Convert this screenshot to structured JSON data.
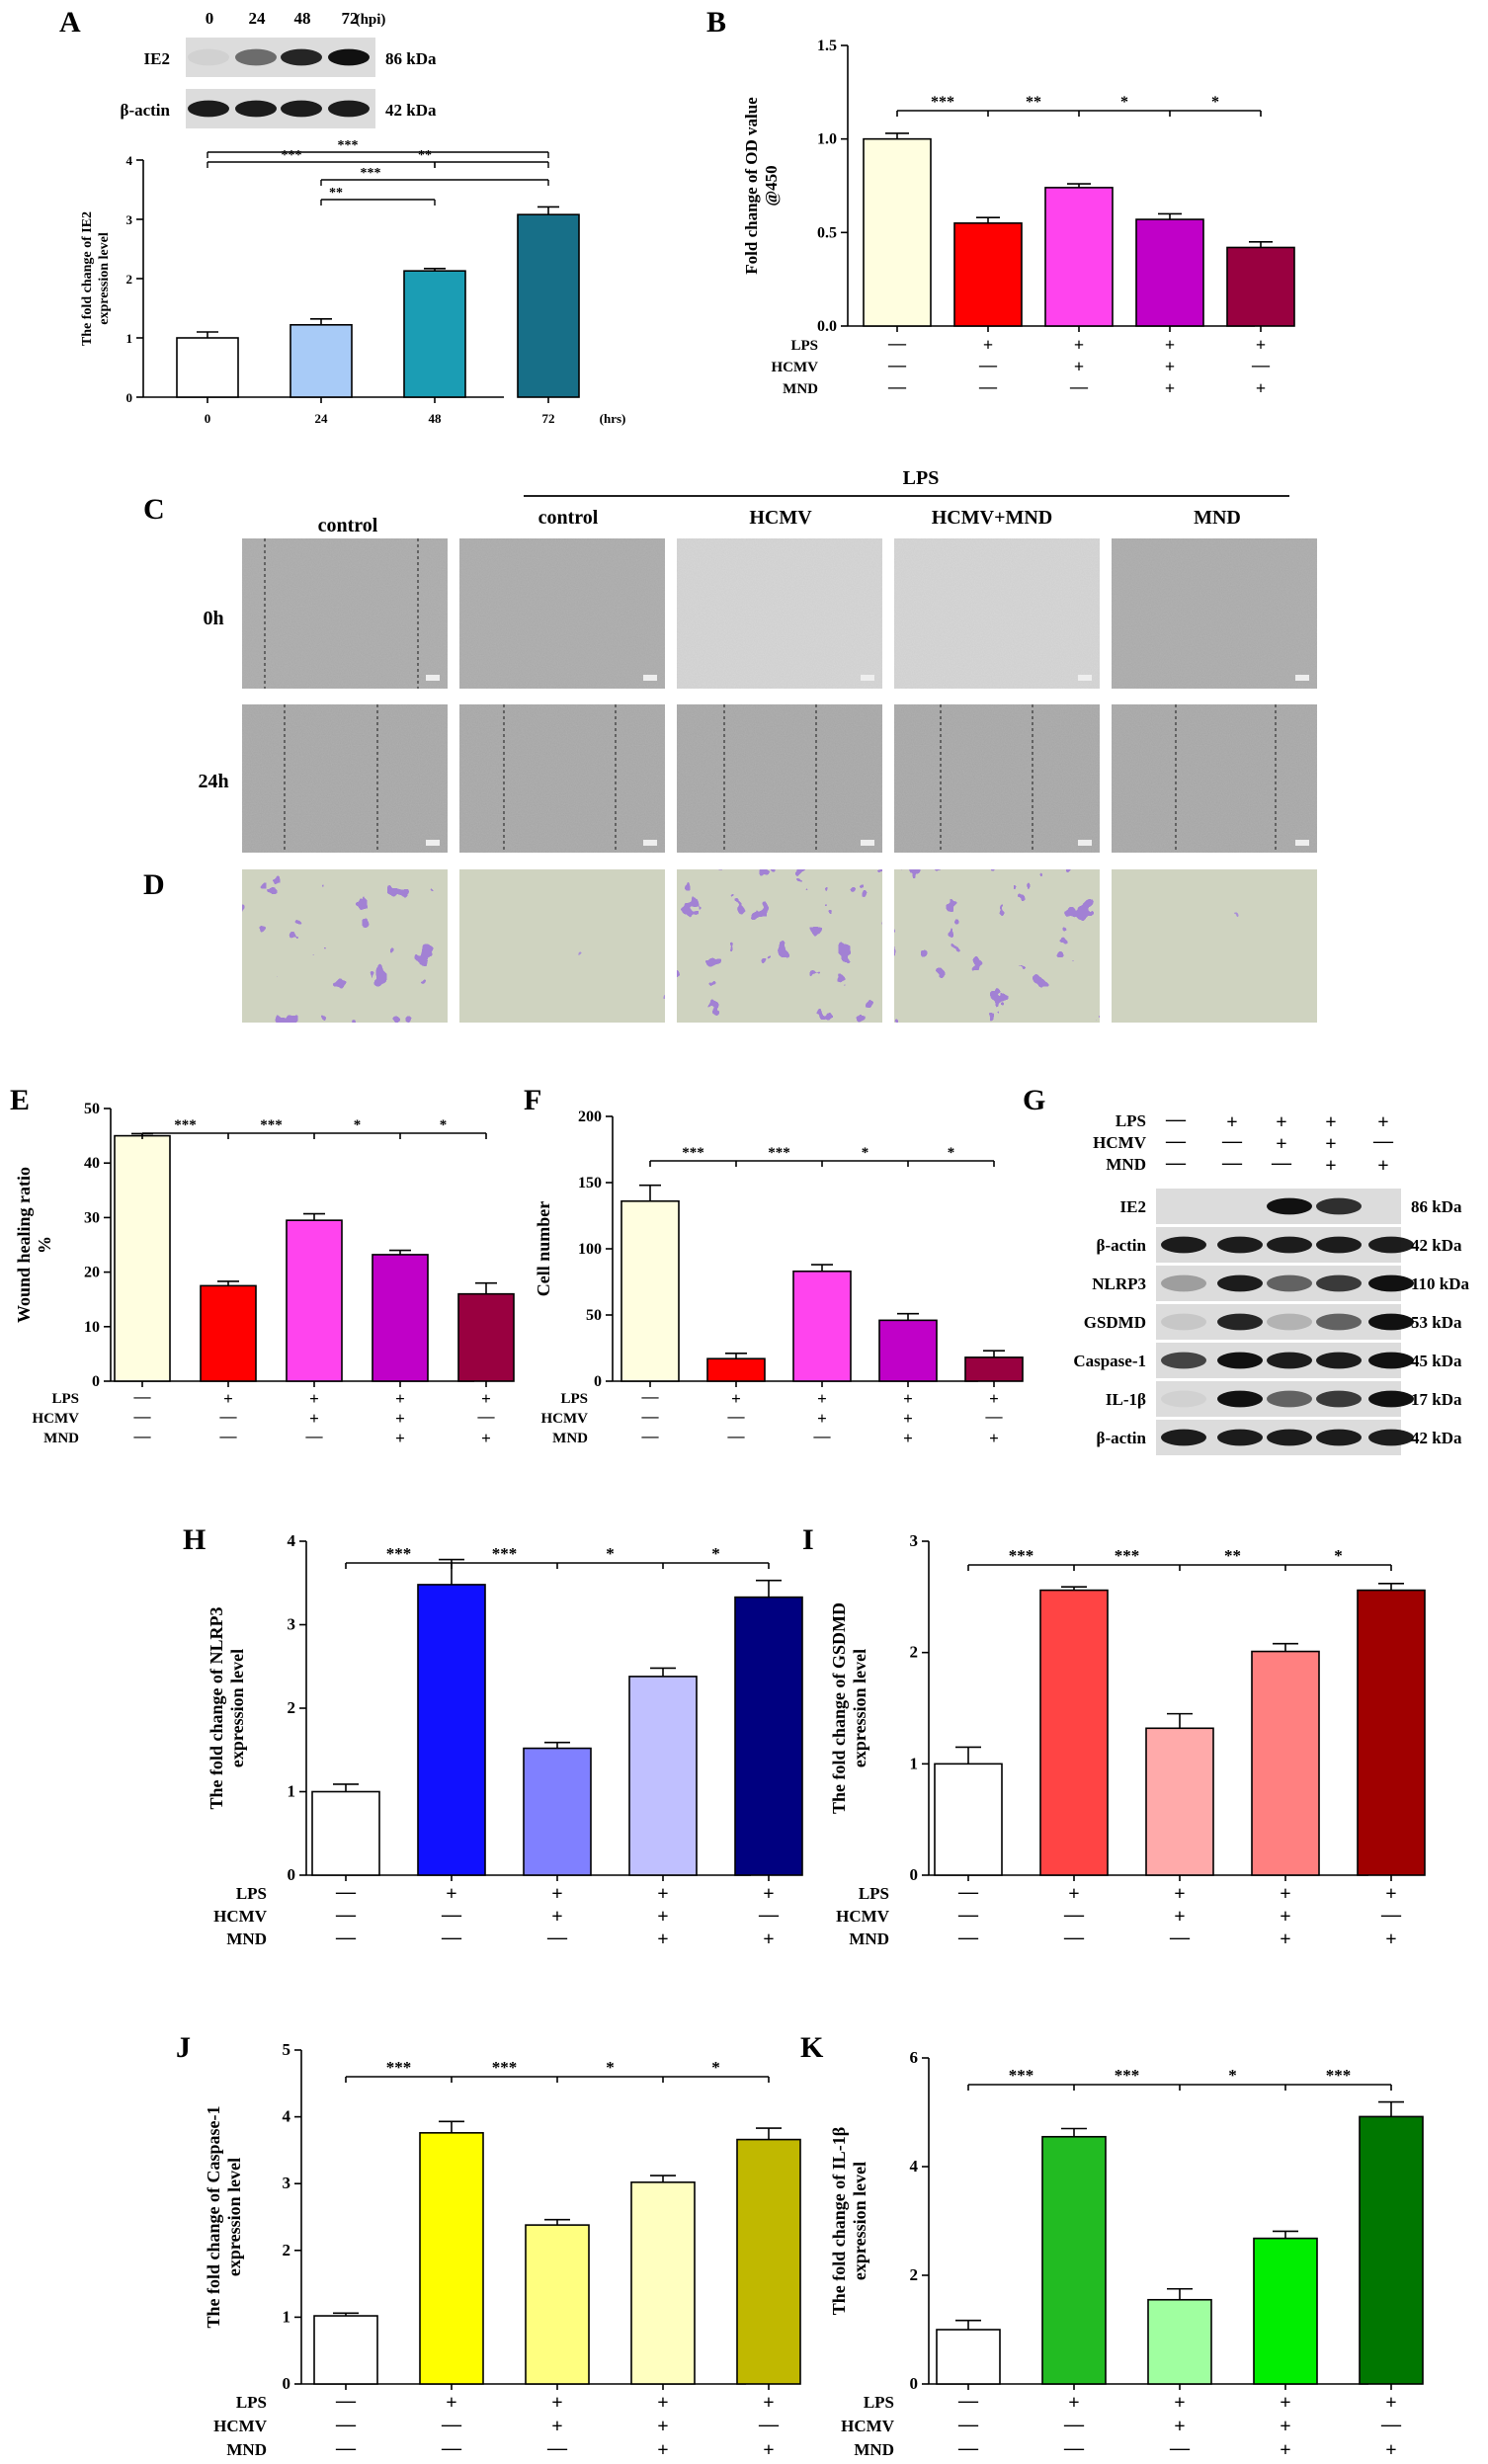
{
  "colors": {
    "A": [
      "#ffffff",
      "#a8cbf7",
      "#1b9db4",
      "#176f88"
    ],
    "B": [
      "#fffee0",
      "#ff0000",
      "#ff44ee",
      "#c000c8",
      "#990040"
    ],
    "E": [
      "#fffee0",
      "#ff0000",
      "#ff44ee",
      "#c000c8",
      "#990040"
    ],
    "F": [
      "#fffee0",
      "#ff0000",
      "#ff44ee",
      "#c000c8",
      "#990040"
    ],
    "H": [
      "#ffffff",
      "#1010ff",
      "#8080ff",
      "#c0c0ff",
      "#000080"
    ],
    "I": [
      "#ffffff",
      "#ff4444",
      "#ffaaaa",
      "#ff8080",
      "#a00000"
    ],
    "J": [
      "#ffffff",
      "#ffff00",
      "#ffff80",
      "#ffffc0",
      "#c0b800"
    ],
    "K": [
      "#ffffff",
      "#22bb22",
      "#a0ffa0",
      "#00ee00",
      "#007700"
    ]
  },
  "panels": {
    "A": {
      "letter": "A"
    },
    "B": {
      "letter": "B"
    },
    "C": {
      "letter": "C"
    },
    "D": {
      "letter": "D"
    },
    "E": {
      "letter": "E"
    },
    "F": {
      "letter": "F"
    },
    "G": {
      "letter": "G"
    },
    "H": {
      "letter": "H"
    },
    "I": {
      "letter": "I"
    },
    "J": {
      "letter": "J"
    },
    "K": {
      "letter": "K"
    }
  },
  "row_labels": [
    "LPS",
    "HCMV",
    "MND"
  ],
  "signs": {
    "LPS": [
      "-",
      "+",
      "+",
      "+",
      "+"
    ],
    "HCMV": [
      "-",
      "-",
      "+",
      "+",
      "-"
    ],
    "MND": [
      "-",
      "-",
      "-",
      "+",
      "+"
    ]
  },
  "blotA": {
    "time_labels": [
      "0",
      "24",
      "48",
      "72"
    ],
    "unit": "(hpi)",
    "rows": [
      {
        "protein": "IE2",
        "size": "86 kDa"
      },
      {
        "protein": "β-actin",
        "size": "42 kDa"
      }
    ]
  },
  "blotG": {
    "rows": [
      {
        "protein": "IE2",
        "size": "86 kDa"
      },
      {
        "protein": "β-actin",
        "size": "42 kDa"
      },
      {
        "protein": "NLRP3",
        "size": "110 kDa"
      },
      {
        "protein": "GSDMD",
        "size": "53 kDa"
      },
      {
        "protein": "Caspase-1",
        "size": "45 kDa"
      },
      {
        "protein": "IL-1β",
        "size": "17 kDa"
      },
      {
        "protein": "β-actin",
        "size": "42 kDa"
      }
    ]
  },
  "micro": {
    "header": "LPS",
    "columns": [
      "control",
      "control",
      "HCMV",
      "HCMV+MND",
      "MND"
    ],
    "rows": [
      "0h",
      "24h"
    ]
  },
  "chart_data": [
    {
      "panel": "A",
      "type": "bar",
      "categories": [
        "0",
        "24",
        "48",
        "72"
      ],
      "x_unit": "(hrs)",
      "values": [
        1.0,
        1.22,
        2.13,
        3.08
      ],
      "errors": [
        0.1,
        0.1,
        0.04,
        0.13
      ],
      "ylabel": [
        "The fold change of IE2",
        "expression level"
      ],
      "ylim": [
        0,
        4
      ],
      "yticks": [
        0,
        1,
        2,
        3,
        4
      ],
      "sig": [
        {
          "from": 0,
          "to": 3,
          "label": "***"
        },
        {
          "from": 0,
          "to": 2,
          "label": "***"
        },
        {
          "from": 2,
          "to": 3,
          "label": "**"
        },
        {
          "from": 1,
          "to": 3,
          "label": "***"
        },
        {
          "from": 1,
          "to": 2,
          "label": "**"
        }
      ]
    },
    {
      "panel": "B",
      "type": "bar",
      "values": [
        1.0,
        0.55,
        0.74,
        0.57,
        0.42
      ],
      "errors": [
        0.03,
        0.03,
        0.02,
        0.03,
        0.03
      ],
      "ylabel": [
        "Fold change of OD value",
        "@450"
      ],
      "ylim": [
        0,
        1.5
      ],
      "yticks": [
        "0.0",
        "0.5",
        "1.0",
        "1.5"
      ],
      "sig": [
        "***",
        "**",
        "*",
        "*"
      ]
    },
    {
      "panel": "E",
      "type": "bar",
      "values": [
        45,
        17.5,
        29.5,
        23.2,
        16
      ],
      "errors": [
        0.4,
        0.8,
        1.2,
        0.8,
        2.0
      ],
      "ylabel": [
        "Wound healing ratio",
        "%"
      ],
      "ylim": [
        0,
        50
      ],
      "yticks": [
        0,
        10,
        20,
        30,
        40,
        50
      ],
      "sig": [
        "***",
        "***",
        "*",
        "*"
      ]
    },
    {
      "panel": "F",
      "type": "bar",
      "values": [
        136,
        17,
        83,
        46,
        18
      ],
      "errors": [
        12,
        4,
        5,
        5,
        5
      ],
      "ylabel": [
        "Cell number"
      ],
      "ylim": [
        0,
        200
      ],
      "yticks": [
        0,
        50,
        100,
        150,
        200
      ],
      "sig": [
        "***",
        "***",
        "*",
        "*"
      ]
    },
    {
      "panel": "H",
      "type": "bar",
      "values": [
        1.0,
        3.48,
        1.52,
        2.38,
        3.33
      ],
      "errors": [
        0.09,
        0.3,
        0.07,
        0.1,
        0.2
      ],
      "ylabel": [
        "The fold change of NLRP3",
        "expression level"
      ],
      "ylim": [
        0,
        4
      ],
      "yticks": [
        0,
        1,
        2,
        3,
        4
      ],
      "sig": [
        "***",
        "***",
        "*",
        "*"
      ]
    },
    {
      "panel": "I",
      "type": "bar",
      "values": [
        1.0,
        2.56,
        1.32,
        2.01,
        2.56
      ],
      "errors": [
        0.15,
        0.03,
        0.13,
        0.07,
        0.06
      ],
      "ylabel": [
        "The fold change of GSDMD",
        "expression level"
      ],
      "ylim": [
        0,
        3
      ],
      "yticks": [
        0,
        1,
        2,
        3
      ],
      "sig": [
        "***",
        "***",
        "**",
        "*"
      ]
    },
    {
      "panel": "J",
      "type": "bar",
      "values": [
        1.02,
        3.76,
        2.38,
        3.02,
        3.66
      ],
      "errors": [
        0.04,
        0.17,
        0.08,
        0.1,
        0.17
      ],
      "ylabel": [
        "The fold change of Caspase-1",
        "expression level"
      ],
      "ylim": [
        0,
        5
      ],
      "yticks": [
        0,
        1,
        2,
        3,
        4,
        5
      ],
      "sig": [
        "***",
        "***",
        "*",
        "*"
      ]
    },
    {
      "panel": "K",
      "type": "bar",
      "values": [
        1.0,
        4.55,
        1.55,
        2.68,
        4.92
      ],
      "errors": [
        0.17,
        0.15,
        0.2,
        0.13,
        0.27
      ],
      "ylabel": [
        "The fold change of IL-1β",
        "expression level"
      ],
      "ylim": [
        0,
        6
      ],
      "yticks": [
        0,
        2,
        4,
        6
      ],
      "sig": [
        "***",
        "***",
        "*",
        "***"
      ]
    }
  ]
}
